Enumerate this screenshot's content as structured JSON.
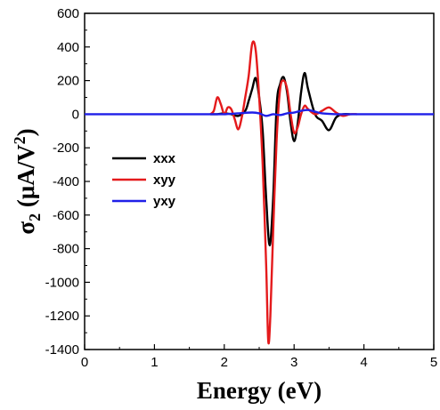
{
  "chart_data": {
    "type": "line",
    "xlabel": "Energy (eV)",
    "ylabel_parts": {
      "sigma": "σ",
      "sub": "2",
      "units_open": " (μA/V",
      "sup": "2",
      "units_close": ")"
    },
    "xlim": [
      0,
      5
    ],
    "ylim": [
      -1400,
      600
    ],
    "x_ticks": [
      0,
      1,
      2,
      3,
      4,
      5
    ],
    "y_ticks": [
      -1400,
      -1200,
      -1000,
      -800,
      -600,
      -400,
      -200,
      0,
      200,
      400,
      600
    ],
    "grid": false,
    "legend": "center-left",
    "series": [
      {
        "name": "xxx",
        "color": "#000000",
        "x": [
          1.8,
          1.9,
          2.0,
          2.1,
          2.2,
          2.3,
          2.35,
          2.4,
          2.45,
          2.5,
          2.55,
          2.6,
          2.65,
          2.7,
          2.75,
          2.8,
          2.85,
          2.9,
          2.95,
          3.0,
          3.05,
          3.1,
          3.15,
          3.2,
          3.3,
          3.4,
          3.5,
          3.6,
          3.7,
          3.8
        ],
        "y": [
          0,
          0,
          5,
          0,
          -10,
          20,
          80,
          150,
          215,
          100,
          -100,
          -500,
          -780,
          -500,
          50,
          180,
          220,
          130,
          -50,
          -160,
          -60,
          130,
          245,
          150,
          0,
          -40,
          -95,
          -20,
          0,
          0
        ]
      },
      {
        "name": "xyy",
        "color": "#e41a1c",
        "x": [
          1.8,
          1.85,
          1.9,
          1.95,
          2.0,
          2.05,
          2.1,
          2.15,
          2.2,
          2.25,
          2.3,
          2.35,
          2.4,
          2.45,
          2.5,
          2.55,
          2.6,
          2.63,
          2.66,
          2.7,
          2.75,
          2.8,
          2.85,
          2.9,
          2.95,
          3.0,
          3.05,
          3.1,
          3.15,
          3.2,
          3.3,
          3.4,
          3.5,
          3.6,
          3.7,
          3.8,
          3.9
        ],
        "y": [
          0,
          20,
          100,
          60,
          0,
          40,
          30,
          -30,
          -90,
          -20,
          100,
          230,
          420,
          380,
          100,
          -300,
          -900,
          -1350,
          -1200,
          -700,
          -150,
          150,
          200,
          150,
          0,
          -110,
          -80,
          0,
          50,
          30,
          0,
          20,
          40,
          10,
          -10,
          0,
          0
        ]
      },
      {
        "name": "yxy",
        "color": "#1f1fe8",
        "x": [
          0,
          1.8,
          2.0,
          2.2,
          2.4,
          2.5,
          2.6,
          2.7,
          2.8,
          2.9,
          3.0,
          3.1,
          3.2,
          3.3,
          3.4,
          3.6,
          3.8,
          4.0,
          5.0
        ],
        "y": [
          0,
          0,
          0,
          5,
          10,
          5,
          -10,
          0,
          -5,
          5,
          10,
          20,
          25,
          15,
          5,
          0,
          0,
          0,
          0
        ]
      }
    ]
  }
}
